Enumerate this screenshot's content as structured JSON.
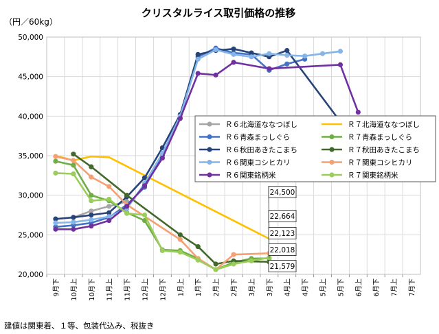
{
  "chart_data": {
    "type": "line",
    "title": "クリスタルライス取引価格の推移",
    "ylabel": "（円／60kg）",
    "footnote": "建値は関東着、１等、包装代込み、税抜き",
    "ylim": [
      20000,
      50000
    ],
    "yticks": [
      "20,000",
      "25,000",
      "30,000",
      "35,000",
      "40,000",
      "45,000",
      "50,000"
    ],
    "categories": [
      "9月下",
      "10月上",
      "10月下",
      "11月上",
      "11月下",
      "12月上",
      "12月下",
      "1月上",
      "1月下",
      "2月上",
      "2月下",
      "3月上",
      "3月下",
      "4月上",
      "4月下",
      "5月上",
      "5月下",
      "6月上",
      "6月下",
      "7月上",
      "7月下"
    ],
    "grid": true,
    "legend_position": "center-right",
    "series": [
      {
        "name": "Ｒ６北海道ななつぼし",
        "color": "#a6a6a6",
        "marker": true,
        "values": [
          27000,
          27200,
          28000,
          28600,
          29200,
          null,
          null,
          null,
          null,
          null,
          null,
          null,
          null,
          null,
          null,
          null,
          null,
          null,
          null,
          null,
          null
        ]
      },
      {
        "name": "Ｒ７北海道ななつぼし",
        "color": "#ffc000",
        "marker": false,
        "values": [
          35000,
          34400,
          34900,
          34800,
          null,
          null,
          null,
          null,
          null,
          null,
          null,
          null,
          24500,
          null,
          null,
          null,
          null,
          null,
          null,
          null,
          null
        ]
      },
      {
        "name": "Ｒ６青森まっしぐら",
        "color": "#4472c4",
        "marker": true,
        "values": [
          26000,
          26200,
          26500,
          27200,
          28800,
          31000,
          35000,
          39800,
          47500,
          48600,
          48000,
          47800,
          45800,
          46600,
          47200,
          null,
          null,
          null,
          null,
          null,
          null
        ]
      },
      {
        "name": "Ｒ７青森まっしぐら",
        "color": "#70ad47",
        "marker": true,
        "values": [
          34300,
          33800,
          30000,
          29300,
          27800,
          26800,
          23100,
          23000,
          22000,
          20600,
          21500,
          22000,
          22018,
          null,
          null,
          null,
          null,
          null,
          null,
          null,
          null
        ]
      },
      {
        "name": "Ｒ６秋田あきたこまち",
        "color": "#264478",
        "marker": true,
        "values": [
          27000,
          27200,
          27500,
          27800,
          29800,
          32200,
          36000,
          40200,
          47800,
          48300,
          48500,
          48000,
          47500,
          48300,
          null,
          null,
          39300,
          null,
          null,
          null,
          null
        ]
      },
      {
        "name": "Ｒ７秋田あきたこまち",
        "color": "#43682b",
        "marker": true,
        "values": [
          null,
          35200,
          33600,
          null,
          30000,
          null,
          null,
          25000,
          23500,
          21300,
          21700,
          null,
          21579,
          null,
          null,
          null,
          null,
          null,
          null,
          null,
          null
        ]
      },
      {
        "name": "Ｒ６関東コシヒカリ",
        "color": "#84b4e8",
        "marker": true,
        "values": [
          26500,
          26600,
          26900,
          27300,
          28300,
          31500,
          35300,
          40000,
          47200,
          48400,
          47800,
          47500,
          47900,
          47700,
          47600,
          47900,
          48200,
          null,
          null,
          null,
          null
        ]
      },
      {
        "name": "Ｒ７関東コシヒカリ",
        "color": "#f4a070",
        "marker": true,
        "values": [
          34900,
          34400,
          32300,
          31100,
          28800,
          null,
          null,
          24400,
          22000,
          20600,
          22500,
          null,
          22664,
          null,
          null,
          null,
          null,
          null,
          null,
          null,
          null
        ]
      },
      {
        "name": "Ｒ６関東銘柄米",
        "color": "#7030a0",
        "marker": true,
        "values": [
          25700,
          25700,
          26100,
          26800,
          28600,
          31200,
          34700,
          39700,
          45400,
          45200,
          46800,
          null,
          46000,
          null,
          null,
          null,
          46500,
          40500,
          null,
          null,
          null
        ]
      },
      {
        "name": "Ｒ７関東銘柄米",
        "color": "#9acd5a",
        "marker": true,
        "values": [
          32800,
          32700,
          29300,
          29500,
          27700,
          27500,
          23000,
          22800,
          21800,
          20600,
          21300,
          21700,
          22123,
          null,
          null,
          null,
          null,
          null,
          null,
          null,
          null
        ]
      }
    ],
    "callouts": [
      "24,500",
      "22,664",
      "22,123",
      "22,018",
      "21,579"
    ]
  }
}
